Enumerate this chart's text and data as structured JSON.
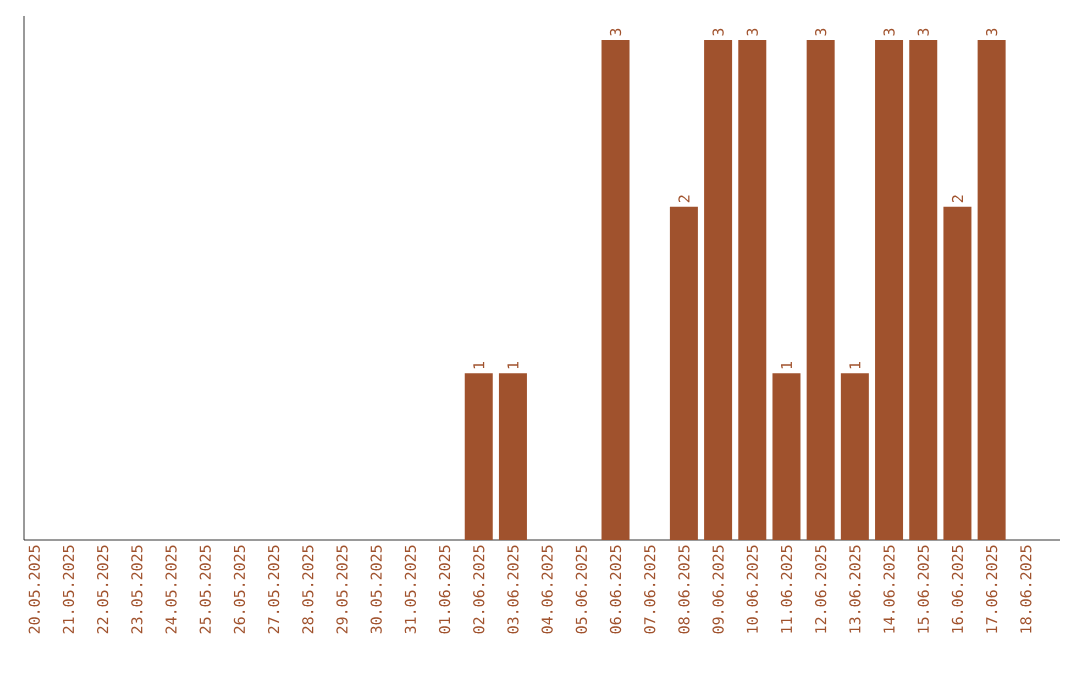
{
  "chart_data": {
    "type": "bar",
    "categories": [
      "20.05.2025",
      "21.05.2025",
      "22.05.2025",
      "23.05.2025",
      "24.05.2025",
      "25.05.2025",
      "26.05.2025",
      "27.05.2025",
      "28.05.2025",
      "29.05.2025",
      "30.05.2025",
      "31.05.2025",
      "01.06.2025",
      "02.06.2025",
      "03.06.2025",
      "04.06.2025",
      "05.06.2025",
      "06.06.2025",
      "07.06.2025",
      "08.06.2025",
      "09.06.2025",
      "10.06.2025",
      "11.06.2025",
      "12.06.2025",
      "13.06.2025",
      "14.06.2025",
      "15.06.2025",
      "16.06.2025",
      "17.06.2025",
      "18.06.2025"
    ],
    "values": [
      null,
      null,
      null,
      null,
      null,
      null,
      null,
      null,
      null,
      null,
      null,
      null,
      null,
      1,
      1,
      null,
      null,
      3,
      null,
      2,
      3,
      3,
      1,
      3,
      1,
      3,
      3,
      2,
      3,
      null
    ],
    "data_labels": true,
    "color": "#a0522d",
    "tick_labels": "x",
    "grid": false
  }
}
